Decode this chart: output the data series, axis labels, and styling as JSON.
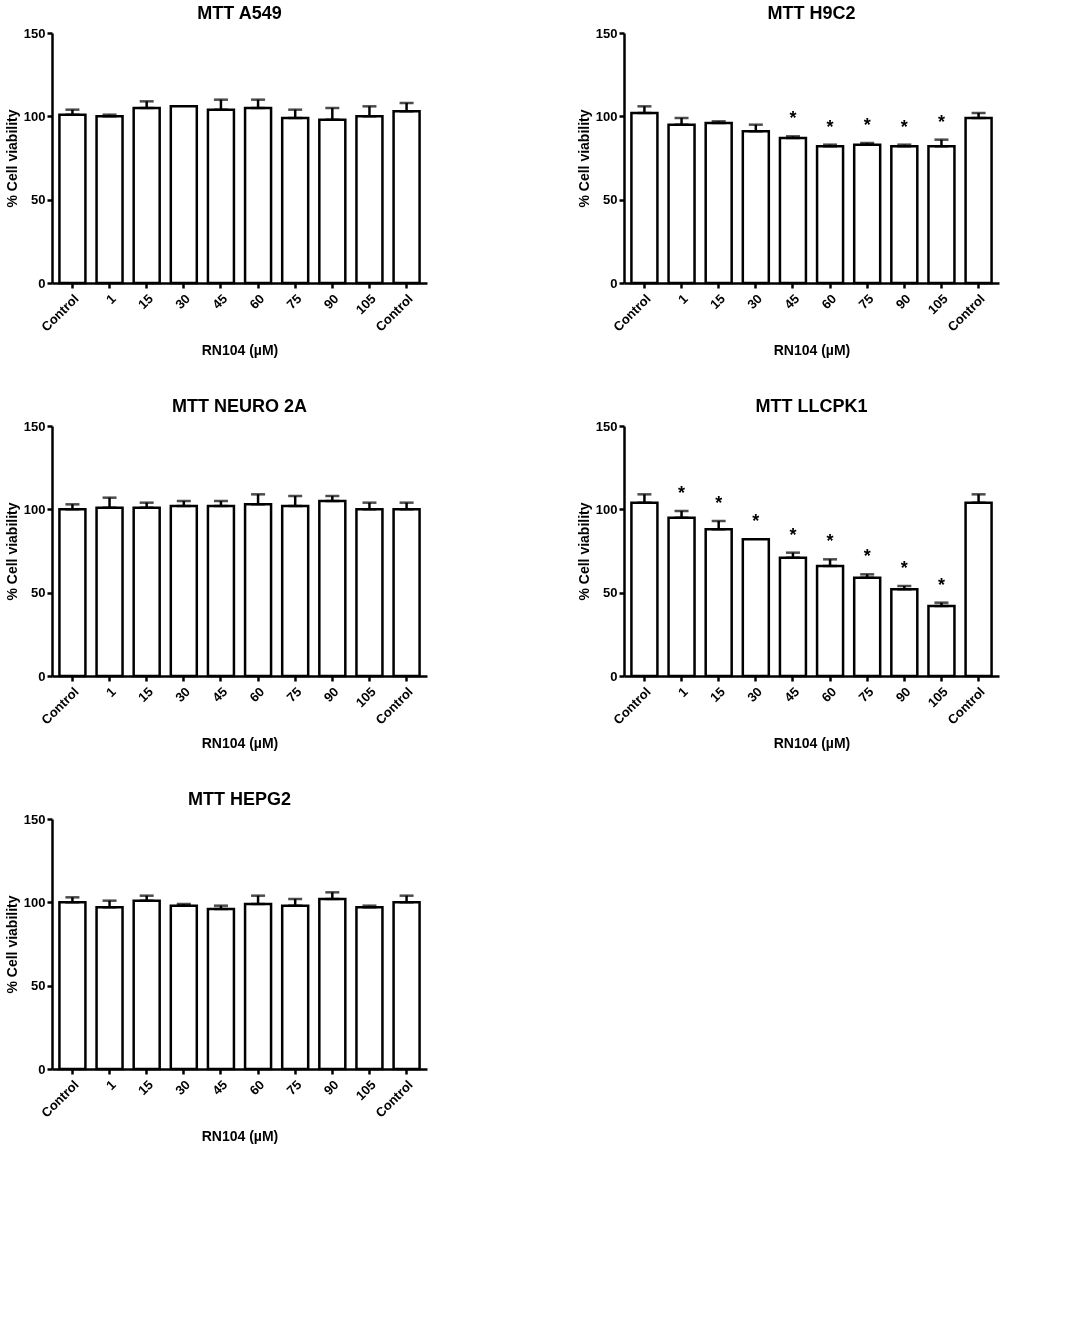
{
  "chart_data": [
    {
      "type": "bar",
      "title": "MTT A549",
      "xlabel": "RN104 (µM)",
      "ylabel": "% Cell viability",
      "categories": [
        "Control",
        "1",
        "15",
        "30",
        "45",
        "60",
        "75",
        "90",
        "105",
        "Control"
      ],
      "ylim": [
        0,
        150
      ],
      "yticks": [
        0,
        50,
        100,
        150
      ],
      "grid": false,
      "series": [
        {
          "color": "#ffffff",
          "values": [
            101,
            100,
            105,
            106,
            104,
            105,
            99,
            98,
            100,
            103
          ],
          "errors": [
            [
              101,
              104
            ],
            [
              100,
              101
            ],
            [
              105,
              109
            ],
            null,
            [
              104,
              110
            ],
            [
              105,
              110
            ],
            [
              99,
              104
            ],
            [
              98,
              105
            ],
            [
              100,
              106
            ],
            [
              103,
              108
            ]
          ]
        }
      ]
    },
    {
      "type": "bar",
      "title": "MTT H9C2",
      "xlabel": "RN104 (µM)",
      "ylabel": "% Cell viability",
      "categories": [
        "Control",
        "1",
        "15",
        "30",
        "45",
        "60",
        "75",
        "90",
        "105",
        "Control"
      ],
      "ylim": [
        0,
        150
      ],
      "yticks": [
        0,
        50,
        100,
        150
      ],
      "grid": false,
      "series": [
        {
          "color": "#ffffff",
          "values": [
            102,
            95,
            96,
            91,
            87,
            82,
            83,
            82,
            82,
            99
          ],
          "errors": [
            [
              102,
              106
            ],
            [
              95,
              99
            ],
            [
              96,
              97
            ],
            [
              91,
              95
            ],
            [
              87,
              88
            ],
            [
              82,
              83
            ],
            [
              83,
              84
            ],
            [
              82,
              83
            ],
            [
              82,
              86
            ],
            [
              99,
              102
            ]
          ]
        }
      ],
      "annotations": [
        "*",
        "*",
        "*",
        "*",
        "*"
      ]
    },
    {
      "type": "bar",
      "title": "MTT NEURO 2A",
      "xlabel": "RN104 (µM)",
      "ylabel": "% Cell viability",
      "categories": [
        "Control",
        "1",
        "15",
        "30",
        "45",
        "60",
        "75",
        "90",
        "105",
        "Control"
      ],
      "ylim": [
        0,
        150
      ],
      "yticks": [
        0,
        50,
        100,
        150
      ],
      "grid": false,
      "series": [
        {
          "color": "#ffffff",
          "values": [
            100,
            101,
            101,
            102,
            102,
            103,
            102,
            105,
            100,
            100
          ],
          "errors": [
            [
              100,
              103
            ],
            [
              101,
              107
            ],
            [
              101,
              104
            ],
            [
              102,
              105
            ],
            [
              102,
              105
            ],
            [
              103,
              109
            ],
            [
              102,
              108
            ],
            [
              105,
              108
            ],
            [
              100,
              104
            ],
            [
              100,
              104
            ]
          ]
        }
      ]
    },
    {
      "type": "bar",
      "title": "MTT LLCPK1",
      "xlabel": "RN104 (µM)",
      "ylabel": "% Cell viability",
      "categories": [
        "Control",
        "1",
        "15",
        "30",
        "45",
        "60",
        "75",
        "90",
        "105",
        "Control"
      ],
      "ylim": [
        0,
        150
      ],
      "yticks": [
        0,
        50,
        100,
        150
      ],
      "grid": false,
      "series": [
        {
          "color": "#ffffff",
          "values": [
            104,
            95,
            88,
            82,
            71,
            66,
            59,
            52,
            42,
            104
          ],
          "errors": [
            [
              104,
              109
            ],
            [
              95,
              99
            ],
            [
              88,
              93
            ],
            null,
            [
              71,
              74
            ],
            [
              66,
              70
            ],
            [
              59,
              61
            ],
            [
              52,
              54
            ],
            [
              42,
              44
            ],
            [
              104,
              109
            ]
          ]
        }
      ],
      "annotations": [
        "*",
        "*",
        "*",
        "*",
        "*",
        "*",
        "*",
        "*"
      ]
    },
    {
      "type": "bar",
      "title": "MTT HEPG2",
      "xlabel": "RN104 (µM)",
      "ylabel": "% Cell viability",
      "categories": [
        "Control",
        "1",
        "15",
        "30",
        "45",
        "60",
        "75",
        "90",
        "105",
        "Control"
      ],
      "ylim": [
        0,
        150
      ],
      "yticks": [
        0,
        50,
        100,
        150
      ],
      "grid": false,
      "series": [
        {
          "color": "#ffffff",
          "values": [
            100,
            97,
            101,
            98,
            96,
            99,
            98,
            102,
            97,
            100
          ],
          "errors": [
            [
              100,
              103
            ],
            [
              97,
              101
            ],
            [
              101,
              104
            ],
            [
              98,
              99
            ],
            [
              96,
              98
            ],
            [
              99,
              104
            ],
            [
              98,
              102
            ],
            [
              102,
              106
            ],
            [
              97,
              98
            ],
            [
              100,
              104
            ]
          ]
        }
      ]
    }
  ]
}
